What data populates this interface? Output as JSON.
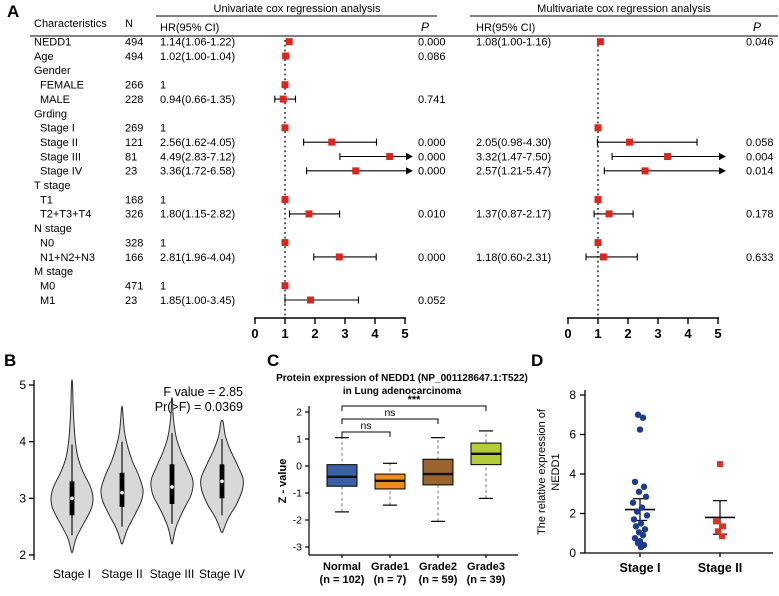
{
  "figure": {
    "background": "#ffffff"
  },
  "colors": {
    "forest_marker": "#d9261f",
    "violin_fill": "#d8d8d8",
    "stage1_dot": "#1b3c8f",
    "stage2_dot": "#e03127",
    "axis": "#000000"
  },
  "chart_data": [
    {
      "panel": "A",
      "type": "forest",
      "section_titles": [
        "Univariate cox regression analysis",
        "Multivariate cox regression analysis"
      ],
      "col_characteristics": "Characteristics",
      "col_n": "N",
      "col_hr": "HR(95% CI)",
      "col_p": "P",
      "axis_ticks": [
        "0",
        "1",
        "2",
        "3",
        "4",
        "5"
      ],
      "reference_value": 1,
      "rows": [
        {
          "name": "NEDD1",
          "n": "494",
          "uni": {
            "text": "1.14(1.06-1.22)",
            "hr": 1.14,
            "lo": 1.06,
            "hi": 1.22,
            "p": "0.000"
          },
          "multi": {
            "text": "1.08(1.00-1.16)",
            "hr": 1.08,
            "lo": 1.0,
            "hi": 1.16,
            "p": "0.046"
          }
        },
        {
          "name": "Age",
          "n": "494",
          "uni": {
            "text": "1.02(1.00-1.04)",
            "hr": 1.02,
            "lo": 1.0,
            "hi": 1.04,
            "p": "0.086"
          }
        },
        {
          "name": "Gender"
        },
        {
          "name": "FEMALE",
          "n": "266",
          "indent": true,
          "uni": {
            "text": "1",
            "hr": 1
          }
        },
        {
          "name": "MALE",
          "n": "228",
          "indent": true,
          "uni": {
            "text": "0.94(0.66-1.35)",
            "hr": 0.94,
            "lo": 0.66,
            "hi": 1.35,
            "p": "0.741"
          }
        },
        {
          "name": "Grding"
        },
        {
          "name": "Stage I",
          "n": "269",
          "indent": true,
          "uni": {
            "text": "1",
            "hr": 1
          },
          "multi": {
            "hr": 1
          }
        },
        {
          "name": "Stage II",
          "n": "121",
          "indent": true,
          "uni": {
            "text": "2.56(1.62-4.05)",
            "hr": 2.56,
            "lo": 1.62,
            "hi": 4.05,
            "p": "0.000"
          },
          "multi": {
            "text": "2.05(0.98-4.30)",
            "hr": 2.05,
            "lo": 0.98,
            "hi": 4.3,
            "p": "0.058"
          }
        },
        {
          "name": "Stage III",
          "n": "81",
          "indent": true,
          "uni": {
            "text": "4.49(2.83-7.12)",
            "hr": 4.49,
            "lo": 2.83,
            "hi": 7.12,
            "p": "0.000"
          },
          "multi": {
            "text": "3.32(1.47-7.50)",
            "hr": 3.32,
            "lo": 1.47,
            "hi": 7.5,
            "p": "0.004"
          }
        },
        {
          "name": "Stage IV",
          "n": "23",
          "indent": true,
          "uni": {
            "text": "3.36(1.72-6.58)",
            "hr": 3.36,
            "lo": 1.72,
            "hi": 6.58,
            "p": "0.000"
          },
          "multi": {
            "text": "2.57(1.21-5.47)",
            "hr": 2.57,
            "lo": 1.21,
            "hi": 5.47,
            "p": "0.014"
          }
        },
        {
          "name": "T stage"
        },
        {
          "name": "T1",
          "n": "168",
          "indent": true,
          "uni": {
            "text": "1",
            "hr": 1
          },
          "multi": {
            "hr": 1
          }
        },
        {
          "name": "T2+T3+T4",
          "n": "326",
          "indent": true,
          "uni": {
            "text": "1.80(1.15-2.82)",
            "hr": 1.8,
            "lo": 1.15,
            "hi": 2.82,
            "p": "0.010"
          },
          "multi": {
            "text": "1.37(0.87-2.17)",
            "hr": 1.37,
            "lo": 0.87,
            "hi": 2.17,
            "p": "0.178"
          }
        },
        {
          "name": "N stage"
        },
        {
          "name": "N0",
          "n": "328",
          "indent": true,
          "uni": {
            "text": "1",
            "hr": 1
          },
          "multi": {
            "hr": 1
          }
        },
        {
          "name": "N1+N2+N3",
          "n": "166",
          "indent": true,
          "uni": {
            "text": "2.81(1.96-4.04)",
            "hr": 2.81,
            "lo": 1.96,
            "hi": 4.04,
            "p": "0.000"
          },
          "multi": {
            "text": "1.18(0.60-2.31)",
            "hr": 1.18,
            "lo": 0.6,
            "hi": 2.31,
            "p": "0.633"
          }
        },
        {
          "name": "M stage"
        },
        {
          "name": "M0",
          "n": "471",
          "indent": true,
          "uni": {
            "text": "1",
            "hr": 1
          }
        },
        {
          "name": "M1",
          "n": "23",
          "indent": true,
          "uni": {
            "text": "1.85(1.00-3.45)",
            "hr": 1.85,
            "lo": 1.0,
            "hi": 3.45,
            "p": "0.052"
          }
        }
      ]
    },
    {
      "panel": "B",
      "type": "violin",
      "annotation_lines": [
        "F value = 2.85",
        "Pr(>F) = 0.0369"
      ],
      "y_ticks": [
        "2",
        "3",
        "4",
        "5"
      ],
      "ylim": [
        2,
        5.2
      ],
      "categories": [
        "Stage I",
        "Stage II",
        "Stage III",
        "Stage IV"
      ],
      "violins": [
        {
          "median": 3.0,
          "box": [
            2.7,
            3.3
          ],
          "whisker": [
            2.35,
            3.95
          ],
          "profile": [
            [
              2.05,
              0.03
            ],
            [
              2.3,
              0.2
            ],
            [
              2.55,
              0.55
            ],
            [
              2.8,
              0.9
            ],
            [
              3.0,
              1.0
            ],
            [
              3.2,
              0.88
            ],
            [
              3.45,
              0.55
            ],
            [
              3.7,
              0.3
            ],
            [
              4.0,
              0.16
            ],
            [
              4.35,
              0.09
            ],
            [
              4.7,
              0.05
            ],
            [
              5.05,
              0.02
            ]
          ]
        },
        {
          "median": 3.1,
          "box": [
            2.85,
            3.45
          ],
          "whisker": [
            2.5,
            4.0
          ],
          "profile": [
            [
              2.2,
              0.03
            ],
            [
              2.45,
              0.25
            ],
            [
              2.7,
              0.6
            ],
            [
              2.95,
              0.92
            ],
            [
              3.15,
              1.0
            ],
            [
              3.4,
              0.8
            ],
            [
              3.65,
              0.5
            ],
            [
              3.9,
              0.28
            ],
            [
              4.15,
              0.13
            ],
            [
              4.4,
              0.06
            ],
            [
              4.6,
              0.02
            ]
          ]
        },
        {
          "median": 3.2,
          "box": [
            2.9,
            3.6
          ],
          "whisker": [
            2.55,
            4.15
          ],
          "profile": [
            [
              2.2,
              0.02
            ],
            [
              2.5,
              0.2
            ],
            [
              2.8,
              0.55
            ],
            [
              3.05,
              0.9
            ],
            [
              3.3,
              1.0
            ],
            [
              3.55,
              0.75
            ],
            [
              3.8,
              0.45
            ],
            [
              4.05,
              0.22
            ],
            [
              4.3,
              0.1
            ],
            [
              4.55,
              0.04
            ],
            [
              4.75,
              0.02
            ]
          ]
        },
        {
          "median": 3.3,
          "box": [
            3.0,
            3.6
          ],
          "whisker": [
            2.7,
            4.05
          ],
          "profile": [
            [
              2.4,
              0.03
            ],
            [
              2.65,
              0.3
            ],
            [
              2.9,
              0.7
            ],
            [
              3.15,
              0.97
            ],
            [
              3.35,
              1.0
            ],
            [
              3.6,
              0.72
            ],
            [
              3.85,
              0.4
            ],
            [
              4.1,
              0.16
            ],
            [
              4.35,
              0.05
            ]
          ]
        }
      ]
    },
    {
      "panel": "C",
      "type": "box",
      "title_lines": [
        "Protein expression of NEDD1 (NP_001128647.1:T522)",
        "in Lung adenocarcinoma"
      ],
      "ylabel": "Z - value",
      "y_ticks": [
        "2",
        "1",
        "0",
        "-1",
        "-2",
        "-3"
      ],
      "groups": [
        {
          "label": "Normal",
          "n_label": "(n = 102)",
          "color": "#3a5fa5",
          "low": -1.7,
          "q1": -0.75,
          "median": -0.4,
          "q3": 0.05,
          "high": 1.05
        },
        {
          "label": "Grade1",
          "n_label": "(n = 7)",
          "color": "#ef8c20",
          "low": -1.45,
          "q1": -0.85,
          "median": -0.55,
          "q3": -0.3,
          "high": 0.1
        },
        {
          "label": "Grade2",
          "n_label": "(n = 59)",
          "color": "#99642e",
          "low": -2.05,
          "q1": -0.7,
          "median": -0.3,
          "q3": 0.25,
          "high": 1.05
        },
        {
          "label": "Grade3",
          "n_label": "(n = 39)",
          "color": "#b4cc35",
          "low": -1.2,
          "q1": 0.05,
          "median": 0.45,
          "q3": 0.85,
          "high": 1.3
        }
      ],
      "significance": [
        {
          "from": 0,
          "to": 1,
          "label": "ns"
        },
        {
          "from": 0,
          "to": 2,
          "label": "ns"
        },
        {
          "from": 0,
          "to": 3,
          "label": "***"
        }
      ]
    },
    {
      "panel": "D",
      "type": "scatter",
      "ylabel_lines": [
        "The relative expression of",
        "NEDD1"
      ],
      "y_ticks": [
        "0",
        "2",
        "4",
        "6",
        "8"
      ],
      "groups": [
        {
          "label": "Stage I",
          "marker": "circle",
          "color": "#1b3c8f",
          "mean": 2.2,
          "sem": 0.55,
          "points": [
            [
              7.0,
              -2
            ],
            [
              6.85,
              3
            ],
            [
              6.25,
              0
            ],
            [
              3.6,
              -5
            ],
            [
              3.35,
              4
            ],
            [
              3.1,
              -1
            ],
            [
              2.85,
              6
            ],
            [
              2.55,
              -7
            ],
            [
              2.3,
              2
            ],
            [
              2.1,
              -3
            ],
            [
              1.9,
              7
            ],
            [
              1.7,
              -6
            ],
            [
              1.5,
              1
            ],
            [
              1.35,
              -4
            ],
            [
              1.2,
              5
            ],
            [
              1.05,
              -1
            ],
            [
              0.9,
              3
            ],
            [
              0.75,
              -5
            ],
            [
              0.6,
              0
            ],
            [
              0.5,
              -2
            ],
            [
              0.4,
              4
            ],
            [
              0.3,
              1
            ]
          ]
        },
        {
          "label": "Stage II",
          "marker": "square",
          "color": "#e03127",
          "mean": 1.8,
          "sem": 0.85,
          "points": [
            [
              4.5,
              0
            ],
            [
              1.6,
              -4
            ],
            [
              1.35,
              3
            ],
            [
              1.1,
              -2
            ],
            [
              0.85,
              2
            ]
          ]
        }
      ]
    }
  ]
}
